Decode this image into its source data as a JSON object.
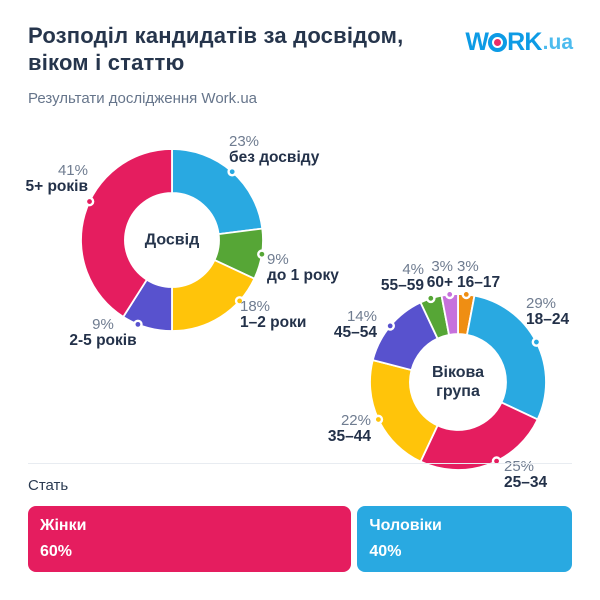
{
  "header": {
    "title_line1": "Розподіл кандидатів за досвідом,",
    "title_line2": "віком і статтю",
    "subtitle": "Результати дослідження Work.ua"
  },
  "logo": {
    "part1": "W",
    "part2": "RK",
    "suffix": ".ua",
    "brand_blue": "#0D9BE5",
    "dot_pink": "#EC2E67"
  },
  "chart_data": [
    {
      "type": "donut",
      "title": "Досвід",
      "center_label": "Досвід",
      "slices": [
        {
          "label": "без досвіду",
          "value": 23,
          "color": "#29A9E1"
        },
        {
          "label": "до 1 року",
          "value": 9,
          "color": "#56A636"
        },
        {
          "label": "1–2 роки",
          "value": 18,
          "color": "#FFC40A"
        },
        {
          "label": "2-5 років",
          "value": 9,
          "color": "#5852CE"
        },
        {
          "label": "5+ років",
          "value": 41,
          "color": "#E51D5F"
        }
      ]
    },
    {
      "type": "donut",
      "title": "Вікова група",
      "center_label_line1": "Вікова",
      "center_label_line2": "група",
      "slices": [
        {
          "label": "16–17",
          "value": 3,
          "color": "#EF8E13"
        },
        {
          "label": "18–24",
          "value": 29,
          "color": "#29A9E1"
        },
        {
          "label": "25–34",
          "value": 25,
          "color": "#E51D5F"
        },
        {
          "label": "35–44",
          "value": 22,
          "color": "#FFC40A"
        },
        {
          "label": "45–54",
          "value": 14,
          "color": "#5852CE"
        },
        {
          "label": "55–59",
          "value": 4,
          "color": "#56A636"
        },
        {
          "label": "60+",
          "value": 3,
          "color": "#C671DC"
        }
      ]
    },
    {
      "type": "bar",
      "title": "Стать",
      "categories": [
        "Жінки",
        "Чоловіки"
      ],
      "values": [
        60,
        40
      ],
      "colors": [
        "#E51D5F",
        "#29A9E1"
      ]
    }
  ]
}
